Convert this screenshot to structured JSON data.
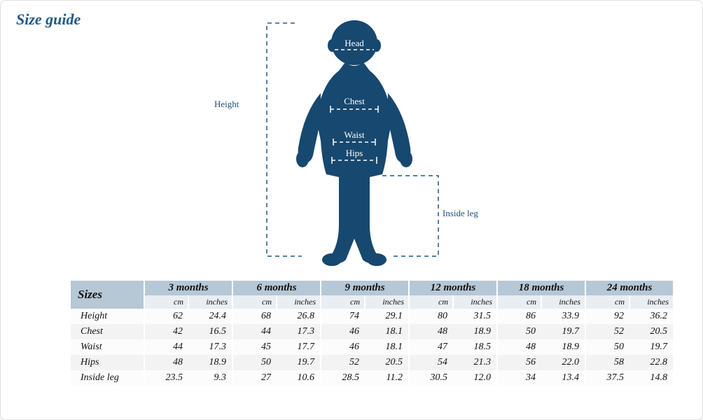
{
  "colors": {
    "title": "#1c5a8a",
    "silhouette": "#17486f",
    "dash": "#1c5a8a",
    "label": "#1c4f80",
    "header_bg": "#b6c7d6",
    "unit_bg": "#e9eef3",
    "row_alt": "#f3f3f3"
  },
  "title": "Size guide",
  "diagram": {
    "labels": {
      "height": "Height",
      "head": "Head",
      "chest": "Chest",
      "waist": "Waist",
      "hips": "Hips",
      "inside_leg": "Inside leg"
    }
  },
  "table": {
    "sizes_label": "Sizes",
    "unit_cm": "cm",
    "unit_in": "inches",
    "ages": [
      "3 months",
      "6 months",
      "9 months",
      "12 months",
      "18 months",
      "24 months"
    ],
    "rows": [
      {
        "label": "Height",
        "vals": [
          [
            62,
            24.4
          ],
          [
            68,
            26.8
          ],
          [
            74,
            29.1
          ],
          [
            80,
            31.5
          ],
          [
            86,
            33.9
          ],
          [
            92,
            36.2
          ]
        ]
      },
      {
        "label": "Chest",
        "vals": [
          [
            42,
            16.5
          ],
          [
            44,
            17.3
          ],
          [
            46,
            18.1
          ],
          [
            48,
            18.9
          ],
          [
            50,
            19.7
          ],
          [
            52,
            20.5
          ]
        ]
      },
      {
        "label": "Waist",
        "vals": [
          [
            44,
            17.3
          ],
          [
            45,
            17.7
          ],
          [
            46,
            18.1
          ],
          [
            47,
            18.5
          ],
          [
            48,
            18.9
          ],
          [
            50,
            19.7
          ]
        ]
      },
      {
        "label": "Hips",
        "vals": [
          [
            48,
            18.9
          ],
          [
            50,
            19.7
          ],
          [
            52,
            20.5
          ],
          [
            54,
            21.3
          ],
          [
            56,
            22.0
          ],
          [
            58,
            22.8
          ]
        ]
      },
      {
        "label": "Inside leg",
        "vals": [
          [
            23.5,
            9.3
          ],
          [
            27,
            10.6
          ],
          [
            28.5,
            11.2
          ],
          [
            30.5,
            12.0
          ],
          [
            34,
            13.4
          ],
          [
            37.5,
            14.8
          ]
        ]
      }
    ]
  }
}
